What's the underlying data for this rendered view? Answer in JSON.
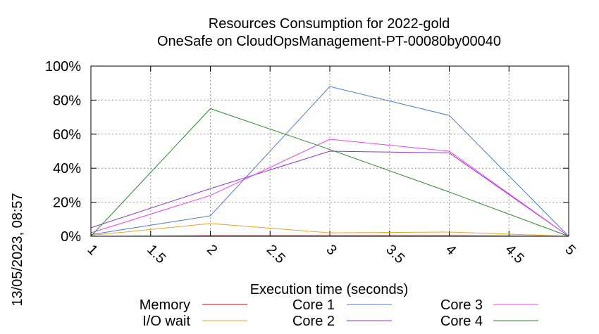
{
  "chart_data": {
    "type": "line",
    "title": "Resources Consumption for 2022-gold",
    "subtitle": "OneSafe on CloudOpsManagement-PT-00080by00040",
    "xlabel": "Execution time (seconds)",
    "ylabel": "",
    "side_label": "13/05/2023, 08:57",
    "xlim": [
      1,
      5
    ],
    "ylim": [
      0,
      100
    ],
    "x_ticks": [
      "1",
      "1.5",
      "2",
      "2.5",
      "3",
      "3.5",
      "4",
      "4.5",
      "5"
    ],
    "y_ticks": [
      "0%",
      "20%",
      "40%",
      "60%",
      "80%",
      "100%"
    ],
    "grid": true,
    "legend_position": "bottom",
    "x": [
      1,
      2,
      3,
      4,
      5
    ],
    "series": [
      {
        "name": "Memory",
        "color": "#e00000",
        "values": [
          0,
          0.3,
          0.3,
          0.3,
          0
        ]
      },
      {
        "name": "I/O wait",
        "color": "#f0a020",
        "values": [
          0.5,
          7.5,
          2,
          2.5,
          0
        ]
      },
      {
        "name": "Core 1",
        "color": "#4a78d8",
        "values": [
          1,
          12,
          88,
          71,
          0
        ]
      },
      {
        "name": "Core 2",
        "color": "#9030e0",
        "values": [
          5,
          28,
          50,
          49,
          0
        ]
      },
      {
        "name": "Core 3",
        "color": "#ee40ee",
        "values": [
          2,
          24,
          57,
          50,
          0
        ]
      },
      {
        "name": "Core 4",
        "color": "#2a8a2a",
        "values": [
          0,
          75,
          51,
          26,
          0
        ]
      }
    ]
  }
}
